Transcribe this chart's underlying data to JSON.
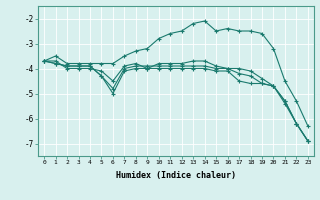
{
  "xlabel": "Humidex (Indice chaleur)",
  "ylabel": "",
  "bg_color": "#d8f0ee",
  "grid_color": "#ffffff",
  "line_color": "#1a7a6e",
  "xlim": [
    -0.5,
    23.5
  ],
  "ylim": [
    -7.5,
    -1.5
  ],
  "yticks": [
    -7,
    -6,
    -5,
    -4,
    -3,
    -2
  ],
  "xticks": [
    0,
    1,
    2,
    3,
    4,
    5,
    6,
    7,
    8,
    9,
    10,
    11,
    12,
    13,
    14,
    15,
    16,
    17,
    18,
    19,
    20,
    21,
    22,
    23
  ],
  "line1_x": [
    0,
    1,
    2,
    3,
    4,
    5,
    6,
    7,
    8,
    9,
    10,
    11,
    12,
    13,
    14,
    15,
    16,
    17,
    18,
    19,
    20,
    21,
    22,
    23
  ],
  "line1_y": [
    -3.7,
    -3.5,
    -3.8,
    -3.8,
    -3.8,
    -3.8,
    -3.8,
    -3.5,
    -3.3,
    -3.2,
    -2.8,
    -2.6,
    -2.5,
    -2.2,
    -2.1,
    -2.5,
    -2.4,
    -2.5,
    -2.5,
    -2.6,
    -3.2,
    -4.5,
    -5.3,
    -6.3
  ],
  "line2_x": [
    0,
    1,
    2,
    3,
    4,
    5,
    6,
    7,
    8,
    9,
    10,
    11,
    12,
    13,
    14,
    15,
    16,
    17,
    18,
    19,
    20,
    21,
    22,
    23
  ],
  "line2_y": [
    -3.7,
    -3.8,
    -3.9,
    -3.9,
    -3.9,
    -4.3,
    -4.8,
    -4.0,
    -3.9,
    -3.9,
    -3.9,
    -3.9,
    -3.9,
    -3.9,
    -3.9,
    -4.0,
    -4.0,
    -4.0,
    -4.1,
    -4.4,
    -4.7,
    -5.3,
    -6.2,
    -6.9
  ],
  "line3_x": [
    0,
    1,
    2,
    3,
    4,
    5,
    6,
    7,
    8,
    9,
    10,
    11,
    12,
    13,
    14,
    15,
    16,
    17,
    18,
    19,
    20,
    21,
    22,
    23
  ],
  "line3_y": [
    -3.7,
    -3.8,
    -3.9,
    -3.9,
    -3.9,
    -4.3,
    -5.0,
    -4.1,
    -4.0,
    -4.0,
    -4.0,
    -4.0,
    -4.0,
    -4.0,
    -4.0,
    -4.1,
    -4.1,
    -4.5,
    -4.6,
    -4.6,
    -4.7,
    -5.3,
    -6.2,
    -6.9
  ],
  "line4_x": [
    0,
    1,
    2,
    3,
    4,
    5,
    6,
    7,
    8,
    9,
    10,
    11,
    12,
    13,
    14,
    15,
    16,
    17,
    18,
    19,
    20,
    21,
    22,
    23
  ],
  "line4_y": [
    -3.7,
    -3.7,
    -4.0,
    -4.0,
    -4.0,
    -4.1,
    -4.5,
    -3.9,
    -3.8,
    -4.0,
    -3.8,
    -3.8,
    -3.8,
    -3.7,
    -3.7,
    -3.9,
    -4.0,
    -4.2,
    -4.3,
    -4.6,
    -4.7,
    -5.4,
    -6.2,
    -6.9
  ]
}
